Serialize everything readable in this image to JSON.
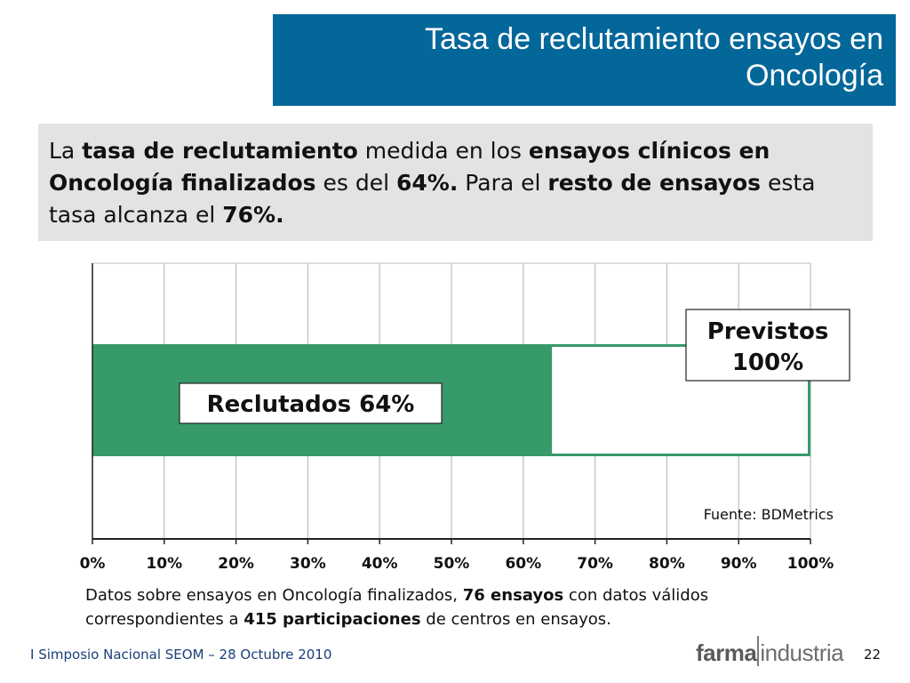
{
  "slide": {
    "title_line1": "Tasa de reclutamiento ensayos en",
    "title_line2": "Oncología"
  },
  "summary": {
    "p1": "La ",
    "b1": "tasa de reclutamiento",
    "p2": " medida en los ",
    "b2": "ensayos clínicos en Oncología finalizados",
    "p3": " es del ",
    "b3": "64%.",
    "p4": " Para el ",
    "b4": "resto de ensayos",
    "p5": " esta tasa alcanza el ",
    "b5": "76%."
  },
  "chart_data": {
    "type": "bar",
    "orientation": "horizontal",
    "x_ticks": [
      "0%",
      "10%",
      "20%",
      "30%",
      "40%",
      "50%",
      "60%",
      "70%",
      "80%",
      "90%",
      "100%"
    ],
    "xlim": [
      0,
      100
    ],
    "grid": true,
    "series": [
      {
        "name": "Previstos",
        "value": 100,
        "color": "#379a69",
        "fill": "none"
      },
      {
        "name": "Reclutados",
        "value": 64,
        "color": "#379a69",
        "fill": "#379a69"
      }
    ],
    "labels": {
      "reclutados": "Reclutados 64%",
      "previstos_line1": "Previstos",
      "previstos_line2": "100%"
    },
    "source": "Fuente: BDMetrics"
  },
  "footnote": {
    "t1": "Datos sobre ensayos en Oncología finalizados, ",
    "b1": "76 ensayos",
    "t2": " con datos válidos correspondientes a ",
    "b2": "415 participaciones",
    "t3": " de centros en ensayos."
  },
  "footer": {
    "event": "I Simposio Nacional SEOM – 28 Octubre 2010",
    "logo_part1": "farma",
    "logo_part2": "industria",
    "page": "22"
  }
}
